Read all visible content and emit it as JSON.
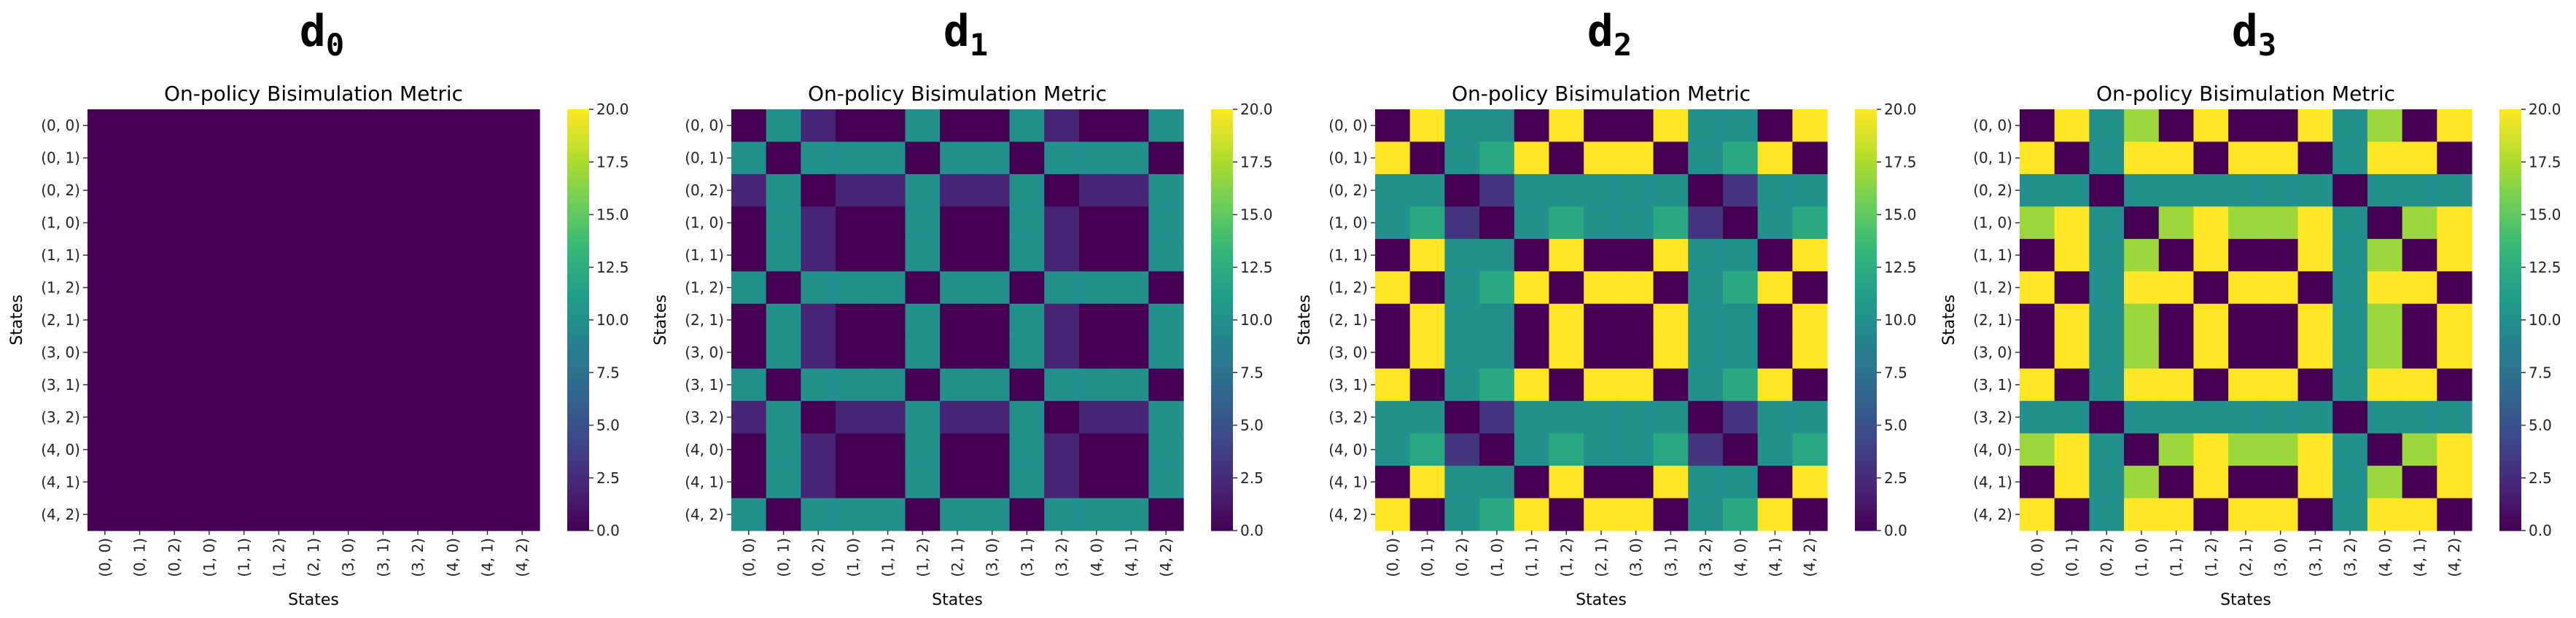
{
  "chart_data": [
    {
      "type": "heatmap",
      "panel_title": {
        "main": "d",
        "sub": "0"
      },
      "title": "On-policy Bisimulation Metric",
      "xlabel": "States",
      "ylabel": "States",
      "row_labels": [
        "(0, 0)",
        "(0, 1)",
        "(0, 2)",
        "(1, 0)",
        "(1, 1)",
        "(1, 2)",
        "(2, 1)",
        "(3, 0)",
        "(3, 1)",
        "(3, 2)",
        "(4, 0)",
        "(4, 1)",
        "(4, 2)"
      ],
      "col_labels": [
        "(0, 0)",
        "(0, 1)",
        "(0, 2)",
        "(1, 0)",
        "(1, 1)",
        "(1, 2)",
        "(2, 1)",
        "(3, 0)",
        "(3, 1)",
        "(3, 2)",
        "(4, 0)",
        "(4, 1)",
        "(4, 2)"
      ],
      "colorbar": {
        "min": 0,
        "max": 20,
        "ticks": [
          "0.0",
          "2.5",
          "5.0",
          "7.5",
          "10.0",
          "12.5",
          "15.0",
          "17.5",
          "20.0"
        ],
        "colormap": "viridis"
      },
      "values": [
        [
          0,
          0,
          0,
          0,
          0,
          0,
          0,
          0,
          0,
          0,
          0,
          0,
          0
        ],
        [
          0,
          0,
          0,
          0,
          0,
          0,
          0,
          0,
          0,
          0,
          0,
          0,
          0
        ],
        [
          0,
          0,
          0,
          0,
          0,
          0,
          0,
          0,
          0,
          0,
          0,
          0,
          0
        ],
        [
          0,
          0,
          0,
          0,
          0,
          0,
          0,
          0,
          0,
          0,
          0,
          0,
          0
        ],
        [
          0,
          0,
          0,
          0,
          0,
          0,
          0,
          0,
          0,
          0,
          0,
          0,
          0
        ],
        [
          0,
          0,
          0,
          0,
          0,
          0,
          0,
          0,
          0,
          0,
          0,
          0,
          0
        ],
        [
          0,
          0,
          0,
          0,
          0,
          0,
          0,
          0,
          0,
          0,
          0,
          0,
          0
        ],
        [
          0,
          0,
          0,
          0,
          0,
          0,
          0,
          0,
          0,
          0,
          0,
          0,
          0
        ],
        [
          0,
          0,
          0,
          0,
          0,
          0,
          0,
          0,
          0,
          0,
          0,
          0,
          0
        ],
        [
          0,
          0,
          0,
          0,
          0,
          0,
          0,
          0,
          0,
          0,
          0,
          0,
          0
        ],
        [
          0,
          0,
          0,
          0,
          0,
          0,
          0,
          0,
          0,
          0,
          0,
          0,
          0
        ],
        [
          0,
          0,
          0,
          0,
          0,
          0,
          0,
          0,
          0,
          0,
          0,
          0,
          0
        ],
        [
          0,
          0,
          0,
          0,
          0,
          0,
          0,
          0,
          0,
          0,
          0,
          0,
          0
        ]
      ]
    },
    {
      "type": "heatmap",
      "panel_title": {
        "main": "d",
        "sub": "1"
      },
      "title": "On-policy Bisimulation Metric",
      "xlabel": "States",
      "ylabel": "States",
      "row_labels": [
        "(0, 0)",
        "(0, 1)",
        "(0, 2)",
        "(1, 0)",
        "(1, 1)",
        "(1, 2)",
        "(2, 1)",
        "(3, 0)",
        "(3, 1)",
        "(3, 2)",
        "(4, 0)",
        "(4, 1)",
        "(4, 2)"
      ],
      "col_labels": [
        "(0, 0)",
        "(0, 1)",
        "(0, 2)",
        "(1, 0)",
        "(1, 1)",
        "(1, 2)",
        "(2, 1)",
        "(3, 0)",
        "(3, 1)",
        "(3, 2)",
        "(4, 0)",
        "(4, 1)",
        "(4, 2)"
      ],
      "colorbar": {
        "min": 0,
        "max": 20,
        "ticks": [
          "0.0",
          "2.5",
          "5.0",
          "7.5",
          "10.0",
          "12.5",
          "15.0",
          "17.5",
          "20.0"
        ],
        "colormap": "viridis"
      },
      "values": [
        [
          0,
          10,
          2,
          0,
          0,
          10,
          0,
          0,
          10,
          2,
          0,
          0,
          10
        ],
        [
          10,
          0,
          10,
          10,
          10,
          0,
          10,
          10,
          0,
          10,
          10,
          10,
          0
        ],
        [
          2,
          10,
          0,
          2,
          2,
          10,
          2,
          2,
          10,
          0,
          2,
          2,
          10
        ],
        [
          0,
          10,
          2,
          0,
          0,
          10,
          0,
          0,
          10,
          2,
          0,
          0,
          10
        ],
        [
          0,
          10,
          2,
          0,
          0,
          10,
          0,
          0,
          10,
          2,
          0,
          0,
          10
        ],
        [
          10,
          0,
          10,
          10,
          10,
          0,
          10,
          10,
          0,
          10,
          10,
          10,
          0
        ],
        [
          0,
          10,
          2,
          0,
          0,
          10,
          0,
          0,
          10,
          2,
          0,
          0,
          10
        ],
        [
          0,
          10,
          2,
          0,
          0,
          10,
          0,
          0,
          10,
          2,
          0,
          0,
          10
        ],
        [
          10,
          0,
          10,
          10,
          10,
          0,
          10,
          10,
          0,
          10,
          10,
          10,
          0
        ],
        [
          2,
          10,
          0,
          2,
          2,
          10,
          2,
          2,
          10,
          0,
          2,
          2,
          10
        ],
        [
          0,
          10,
          2,
          0,
          0,
          10,
          0,
          0,
          10,
          2,
          0,
          0,
          10
        ],
        [
          0,
          10,
          2,
          0,
          0,
          10,
          0,
          0,
          10,
          2,
          0,
          0,
          10
        ],
        [
          10,
          0,
          10,
          10,
          10,
          0,
          10,
          10,
          0,
          10,
          10,
          10,
          0
        ]
      ]
    },
    {
      "type": "heatmap",
      "panel_title": {
        "main": "d",
        "sub": "2"
      },
      "title": "On-policy Bisimulation Metric",
      "xlabel": "States",
      "ylabel": "States",
      "row_labels": [
        "(0, 0)",
        "(0, 1)",
        "(0, 2)",
        "(1, 0)",
        "(1, 1)",
        "(1, 2)",
        "(2, 1)",
        "(3, 0)",
        "(3, 1)",
        "(3, 2)",
        "(4, 0)",
        "(4, 1)",
        "(4, 2)"
      ],
      "col_labels": [
        "(0, 0)",
        "(0, 1)",
        "(0, 2)",
        "(1, 0)",
        "(1, 1)",
        "(1, 2)",
        "(2, 1)",
        "(3, 0)",
        "(3, 1)",
        "(3, 2)",
        "(4, 0)",
        "(4, 1)",
        "(4, 2)"
      ],
      "colorbar": {
        "min": 0,
        "max": 20,
        "ticks": [
          "0.0",
          "2.5",
          "5.0",
          "7.5",
          "10.0",
          "12.5",
          "15.0",
          "17.5",
          "20.0"
        ],
        "colormap": "viridis"
      },
      "values": [
        [
          0,
          20,
          10,
          10,
          0,
          20,
          0,
          0,
          20,
          10,
          10,
          0,
          20
        ],
        [
          20,
          0,
          10,
          12,
          20,
          0,
          20,
          20,
          0,
          10,
          12,
          20,
          0
        ],
        [
          10,
          10,
          0,
          3,
          10,
          10,
          10,
          10,
          10,
          0,
          3,
          10,
          10
        ],
        [
          10,
          12,
          3,
          0,
          10,
          12,
          10,
          10,
          12,
          3,
          0,
          10,
          12
        ],
        [
          0,
          20,
          10,
          10,
          0,
          20,
          0,
          0,
          20,
          10,
          10,
          0,
          20
        ],
        [
          20,
          0,
          10,
          12,
          20,
          0,
          20,
          20,
          0,
          10,
          12,
          20,
          0
        ],
        [
          0,
          20,
          10,
          10,
          0,
          20,
          0,
          0,
          20,
          10,
          10,
          0,
          20
        ],
        [
          0,
          20,
          10,
          10,
          0,
          20,
          0,
          0,
          20,
          10,
          10,
          0,
          20
        ],
        [
          20,
          0,
          10,
          12,
          20,
          0,
          20,
          20,
          0,
          10,
          12,
          20,
          0
        ],
        [
          10,
          10,
          0,
          3,
          10,
          10,
          10,
          10,
          10,
          0,
          3,
          10,
          10
        ],
        [
          10,
          12,
          3,
          0,
          10,
          12,
          10,
          10,
          12,
          3,
          0,
          10,
          12
        ],
        [
          0,
          20,
          10,
          10,
          0,
          20,
          0,
          0,
          20,
          10,
          10,
          0,
          20
        ],
        [
          20,
          0,
          10,
          12,
          20,
          0,
          20,
          20,
          0,
          10,
          12,
          20,
          0
        ]
      ]
    },
    {
      "type": "heatmap",
      "panel_title": {
        "main": "d",
        "sub": "3"
      },
      "title": "On-policy Bisimulation Metric",
      "xlabel": "States",
      "ylabel": "States",
      "row_labels": [
        "(0, 0)",
        "(0, 1)",
        "(0, 2)",
        "(1, 0)",
        "(1, 1)",
        "(1, 2)",
        "(2, 1)",
        "(3, 0)",
        "(3, 1)",
        "(3, 2)",
        "(4, 0)",
        "(4, 1)",
        "(4, 2)"
      ],
      "col_labels": [
        "(0, 0)",
        "(0, 1)",
        "(0, 2)",
        "(1, 0)",
        "(1, 1)",
        "(1, 2)",
        "(2, 1)",
        "(3, 0)",
        "(3, 1)",
        "(3, 2)",
        "(4, 0)",
        "(4, 1)",
        "(4, 2)"
      ],
      "colorbar": {
        "min": 0,
        "max": 20,
        "ticks": [
          "0.0",
          "2.5",
          "5.0",
          "7.5",
          "10.0",
          "12.5",
          "15.0",
          "17.5",
          "20.0"
        ],
        "colormap": "viridis"
      },
      "values": [
        [
          0,
          20,
          10,
          17,
          0,
          20,
          0,
          0,
          20,
          10,
          17,
          0,
          20
        ],
        [
          20,
          0,
          10,
          20,
          20,
          0,
          20,
          20,
          0,
          10,
          20,
          20,
          0
        ],
        [
          10,
          10,
          0,
          10,
          10,
          10,
          10,
          10,
          10,
          0,
          10,
          10,
          10
        ],
        [
          17,
          20,
          10,
          0,
          17,
          20,
          17,
          17,
          20,
          10,
          0,
          17,
          20
        ],
        [
          0,
          20,
          10,
          17,
          0,
          20,
          0,
          0,
          20,
          10,
          17,
          0,
          20
        ],
        [
          20,
          0,
          10,
          20,
          20,
          0,
          20,
          20,
          0,
          10,
          20,
          20,
          0
        ],
        [
          0,
          20,
          10,
          17,
          0,
          20,
          0,
          0,
          20,
          10,
          17,
          0,
          20
        ],
        [
          0,
          20,
          10,
          17,
          0,
          20,
          0,
          0,
          20,
          10,
          17,
          0,
          20
        ],
        [
          20,
          0,
          10,
          20,
          20,
          0,
          20,
          20,
          0,
          10,
          20,
          20,
          0
        ],
        [
          10,
          10,
          0,
          10,
          10,
          10,
          10,
          10,
          10,
          0,
          10,
          10,
          10
        ],
        [
          17,
          20,
          10,
          0,
          17,
          20,
          17,
          17,
          20,
          10,
          0,
          17,
          20
        ],
        [
          0,
          20,
          10,
          17,
          0,
          20,
          0,
          0,
          20,
          10,
          17,
          0,
          20
        ],
        [
          20,
          0,
          10,
          20,
          20,
          0,
          20,
          20,
          0,
          10,
          20,
          20,
          0
        ]
      ]
    }
  ]
}
